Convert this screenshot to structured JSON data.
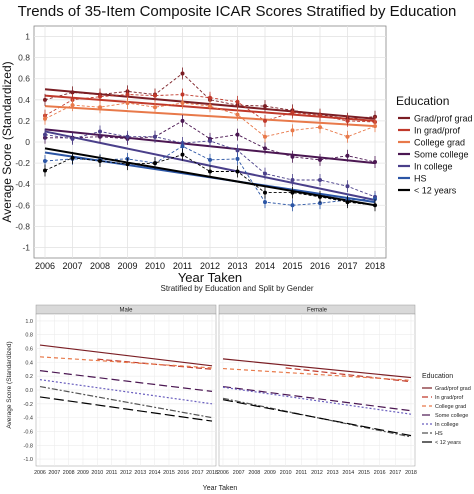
{
  "chart_data": [
    {
      "type": "line",
      "title": "Trends of 35-Item Composite ICAR Scores Stratified by Education",
      "xlabel": "Year Taken",
      "ylabel": "Average Score (Standardized)",
      "x": [
        2006,
        2007,
        2008,
        2009,
        2010,
        2011,
        2012,
        2013,
        2014,
        2015,
        2016,
        2017,
        2018
      ],
      "x_tick_labels": [
        "2006",
        "2007",
        "2008",
        "2009",
        "2010",
        "2011",
        "2012",
        "2013",
        "2014",
        "2015",
        "2016",
        "2017",
        "2018"
      ],
      "ylim": [
        -1,
        1
      ],
      "y_ticks": [
        -1,
        -0.8,
        -0.6,
        -0.4,
        -0.2,
        0,
        0.2,
        0.4,
        0.6,
        0.8,
        1
      ],
      "y_tick_labels": [
        "-1",
        "-0.8",
        "-0.6",
        "-0.4",
        "-0.2",
        "0",
        "0.2",
        "0.4",
        "0.6",
        "0.8",
        "1"
      ],
      "grid": true,
      "legend": {
        "title": "Education",
        "position": "right"
      },
      "series": [
        {
          "name": "Grad/prof grad",
          "color": "#7b1e24",
          "values": [
            0.4,
            0.47,
            0.45,
            0.48,
            0.45,
            0.65,
            0.4,
            0.35,
            0.34,
            0.3,
            0.26,
            0.22,
            0.24
          ],
          "trend": [
            0.5,
            0.22
          ]
        },
        {
          "name": "In grad/prof",
          "color": "#c0392b",
          "values": [
            0.25,
            0.4,
            0.43,
            0.45,
            0.44,
            0.45,
            0.42,
            0.38,
            0.2,
            0.28,
            0.25,
            0.2,
            0.19
          ],
          "trend": [
            0.44,
            0.2
          ]
        },
        {
          "name": "College grad",
          "color": "#e8794a",
          "values": [
            0.22,
            0.35,
            0.33,
            0.37,
            0.33,
            0.37,
            0.34,
            0.26,
            0.05,
            0.11,
            0.14,
            0.05,
            0.15
          ],
          "trend": [
            0.34,
            0.15
          ]
        },
        {
          "name": "Some college",
          "color": "#4b1752",
          "values": [
            0.04,
            0.04,
            0.05,
            0.03,
            0.05,
            0.2,
            0.03,
            0.07,
            -0.06,
            -0.14,
            -0.17,
            -0.13,
            -0.19
          ],
          "trend": [
            0.12,
            -0.2
          ]
        },
        {
          "name": "In college",
          "color": "#4a3f8a",
          "values": [
            0.07,
            0.03,
            0.1,
            0.05,
            0.05,
            -0.01,
            0.01,
            -0.08,
            -0.3,
            -0.36,
            -0.36,
            -0.42,
            -0.52
          ],
          "trend": [
            0.1,
            -0.55
          ]
        },
        {
          "name": "HS",
          "color": "#2b55a5",
          "values": [
            -0.18,
            -0.16,
            -0.17,
            -0.16,
            -0.2,
            -0.04,
            -0.17,
            -0.16,
            -0.57,
            -0.6,
            -0.58,
            -0.55,
            -0.54
          ],
          "trend": [
            -0.1,
            -0.57
          ]
        },
        {
          "name": "< 12 years",
          "color": "#000000",
          "values": [
            -0.27,
            -0.15,
            -0.18,
            -0.21,
            -0.2,
            -0.12,
            -0.28,
            -0.28,
            -0.48,
            -0.48,
            -0.52,
            -0.57,
            -0.6
          ],
          "trend": [
            -0.06,
            -0.6
          ]
        }
      ]
    },
    {
      "type": "line",
      "title": "Stratified by Education and Split by Gender",
      "xlabel": "Year Taken",
      "ylabel": "Average Score (Standardized)",
      "x_tick_labels": [
        "2006",
        "2007",
        "2008",
        "2009",
        "2010",
        "2011",
        "2012",
        "2013",
        "2014",
        "2015",
        "2016",
        "2017",
        "2018"
      ],
      "ylim": [
        -1,
        1
      ],
      "y_tick_labels": [
        "-1.0",
        "-0.8",
        "-0.6",
        "-0.4",
        "-0.2",
        "0.0",
        "0.2",
        "0.4",
        "0.6",
        "0.8",
        "1.0"
      ],
      "grid": true,
      "legend": {
        "title": "Education",
        "position": "right"
      },
      "facets": [
        "Male",
        "Female"
      ],
      "series": [
        {
          "name": "Grad/prof grad",
          "color": "#7b1e24",
          "dash": "",
          "male": [
            0.65,
            0.35
          ],
          "female": [
            0.45,
            0.18
          ]
        },
        {
          "name": "In grad/prof",
          "color": "#c0392b",
          "dash": "6 3",
          "male": [
            0.52,
            0.3
          ],
          "female": [
            0.42,
            0.12
          ],
          "male_start": 2010,
          "female_start": 2010
        },
        {
          "name": "College grad",
          "color": "#e8794a",
          "dash": "4 3",
          "male": [
            0.48,
            0.32
          ],
          "female": [
            0.31,
            0.14
          ]
        },
        {
          "name": "Some college",
          "color": "#4b1752",
          "dash": "8 4",
          "male": [
            0.28,
            -0.02
          ],
          "female": [
            0.05,
            -0.3
          ]
        },
        {
          "name": "In college",
          "color": "#6a5fbf",
          "dash": "2 2",
          "male": [
            0.15,
            -0.2
          ],
          "female": [
            0.04,
            -0.35
          ]
        },
        {
          "name": "HS",
          "color": "#555555",
          "dash": "6 2 2 2",
          "male": [
            0.05,
            -0.4
          ],
          "female": [
            -0.12,
            -0.68
          ]
        },
        {
          "name": "< 12 years",
          "color": "#000000",
          "dash": "10 4",
          "male": [
            -0.1,
            -0.45
          ],
          "female": [
            -0.14,
            -0.66
          ]
        }
      ]
    }
  ]
}
